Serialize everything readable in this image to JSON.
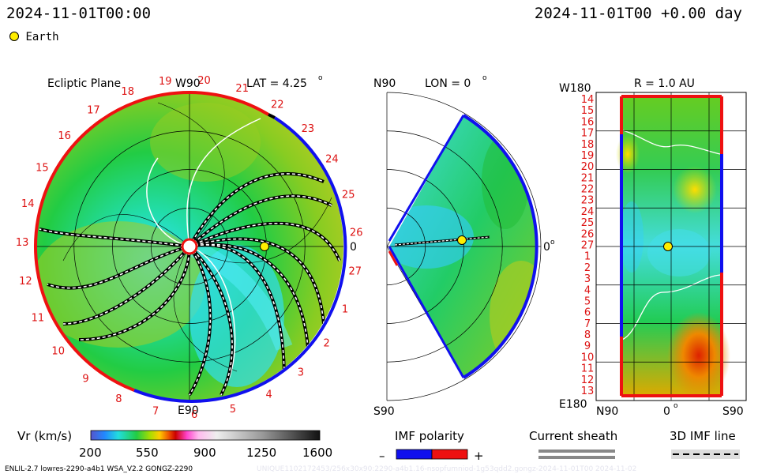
{
  "header": {
    "left_time": "2024-11-01T00:00",
    "right_time": "2024-11-01T00 +0.00 day",
    "legend_earth": "Earth"
  },
  "panels": {
    "ecliptic": {
      "title": "Ecliptic Plane",
      "top_label": "W90",
      "bottom_label": "E90",
      "right_label": "0",
      "lat_label": "LAT = 4.25",
      "carrington_numbers": [
        "20",
        "21",
        "22",
        "23",
        "24",
        "25",
        "26",
        "27",
        "1",
        "2",
        "3",
        "4",
        "5",
        "6",
        "7",
        "8",
        "9",
        "10",
        "11",
        "12",
        "13",
        "14",
        "15",
        "16",
        "17",
        "18",
        "19"
      ]
    },
    "meridional": {
      "top_label": "N90",
      "bottom_label": "S90",
      "lon_label": "LON = 0",
      "right_label": "0"
    },
    "radial": {
      "top_left_label": "W180",
      "bottom_left_label": "E180",
      "r_label": "R = 1.0 AU",
      "y_ticks": [
        "14",
        "15",
        "16",
        "17",
        "18",
        "19",
        "20",
        "21",
        "22",
        "23",
        "24",
        "25",
        "26",
        "27",
        "1",
        "2",
        "3",
        "4",
        "5",
        "6",
        "7",
        "8",
        "9",
        "10",
        "11",
        "12",
        "13"
      ],
      "x_ticks": [
        "N90",
        "0",
        "S90"
      ]
    }
  },
  "chart_data": {
    "type": "heatmap",
    "quantity_label": "Vr (km/s)",
    "colorbar": {
      "ticks": [
        "200",
        "550",
        "900",
        "1250",
        "1600"
      ],
      "range": [
        200,
        1600
      ]
    },
    "earth": {
      "lon_deg": 0,
      "lat_deg": 4.25,
      "r_au": 1.0
    }
  },
  "legends": {
    "imf_polarity": {
      "title": "IMF polarity",
      "minus": "–",
      "plus": "+",
      "neg_color": "#1010ee",
      "pos_color": "#ee1111"
    },
    "current_sheath": {
      "title": "Current sheath"
    },
    "imf_line": {
      "title": "3D IMF line"
    }
  },
  "footer": {
    "left": "ENLIL-2.7 lowres-2290-a4b1 WSA_V2.2 GONGZ-2290",
    "right": "UNIQUE1102172453/256x30x90:2290-a4b1.16-nsopfumniod-1g53qdd2.gongz-2024-11-01T00  2024-11-02"
  },
  "colors": {
    "neg": "#1010ee",
    "pos": "#ee1111",
    "earth": "#ffee00"
  }
}
